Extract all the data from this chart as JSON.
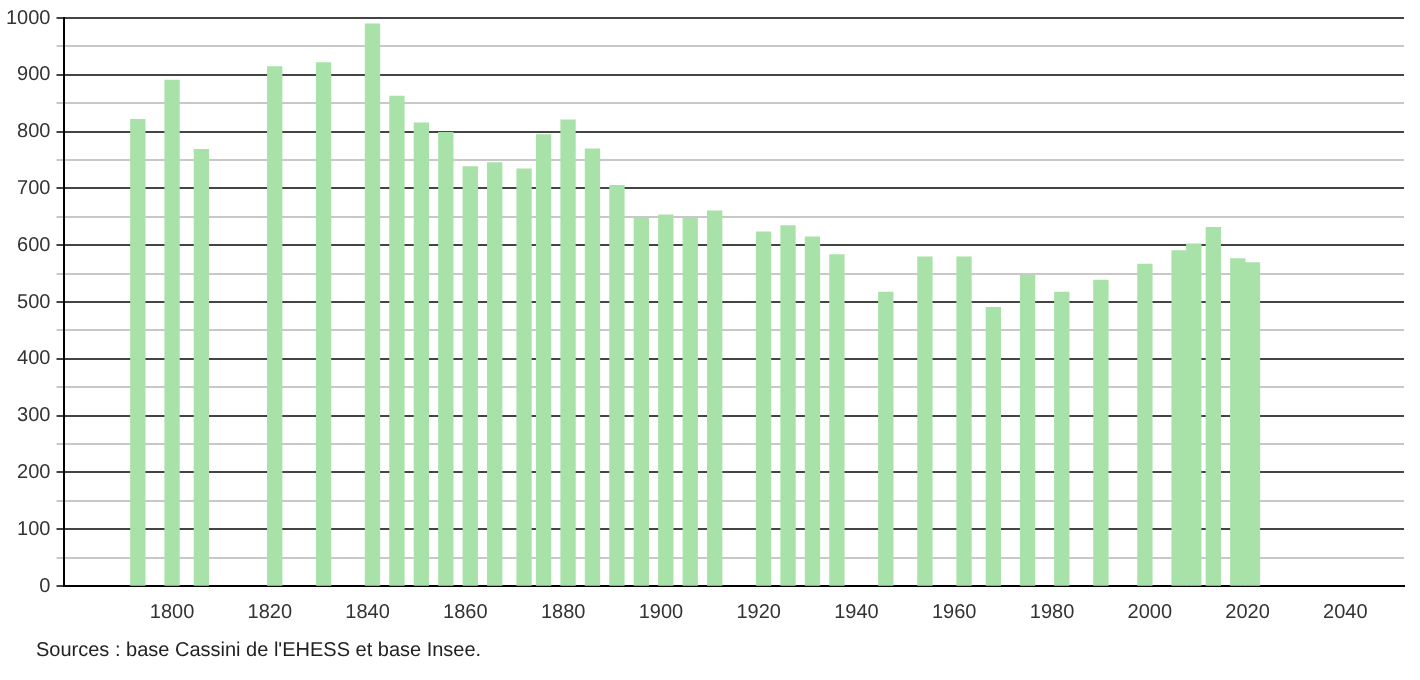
{
  "chart_data": {
    "type": "bar",
    "x": [
      1793,
      1800,
      1806,
      1821,
      1831,
      1841,
      1846,
      1851,
      1856,
      1861,
      1866,
      1872,
      1876,
      1881,
      1886,
      1891,
      1896,
      1901,
      1906,
      1911,
      1921,
      1926,
      1931,
      1936,
      1946,
      1954,
      1962,
      1968,
      1975,
      1982,
      1990,
      1999,
      2006,
      2009,
      2013,
      2018,
      2021
    ],
    "values": [
      821,
      890,
      768,
      914,
      921,
      989,
      862,
      815,
      798,
      738,
      745,
      734,
      794,
      820,
      769,
      705,
      648,
      653,
      648,
      660,
      623,
      634,
      614,
      583,
      517,
      579,
      579,
      490,
      547,
      517,
      538,
      566,
      590,
      602,
      631,
      576,
      569
    ],
    "color": "#a8e2a8",
    "xlim": [
      1778,
      2052
    ],
    "xticks": [
      1800,
      1820,
      1840,
      1860,
      1880,
      1900,
      1920,
      1940,
      1960,
      1980,
      2000,
      2020,
      2040
    ],
    "ylim": [
      0,
      1000
    ],
    "yticks": [
      0,
      {
        "value": 50,
        "label": null
      },
      100,
      {
        "value": 150,
        "label": null
      },
      200,
      {
        "value": 250,
        "label": null
      },
      300,
      {
        "value": 350,
        "label": null
      },
      400,
      {
        "value": 450,
        "label": null
      },
      500,
      {
        "value": 550,
        "label": null
      },
      600,
      {
        "value": 650,
        "label": null
      },
      700,
      {
        "value": 750,
        "label": null
      },
      800,
      {
        "value": 850,
        "label": null
      },
      900,
      {
        "value": 950,
        "label": null
      },
      1000
    ],
    "grid": "y",
    "annotations": [
      "Sources : base Cassini de l'EHESS et base Insee."
    ]
  }
}
